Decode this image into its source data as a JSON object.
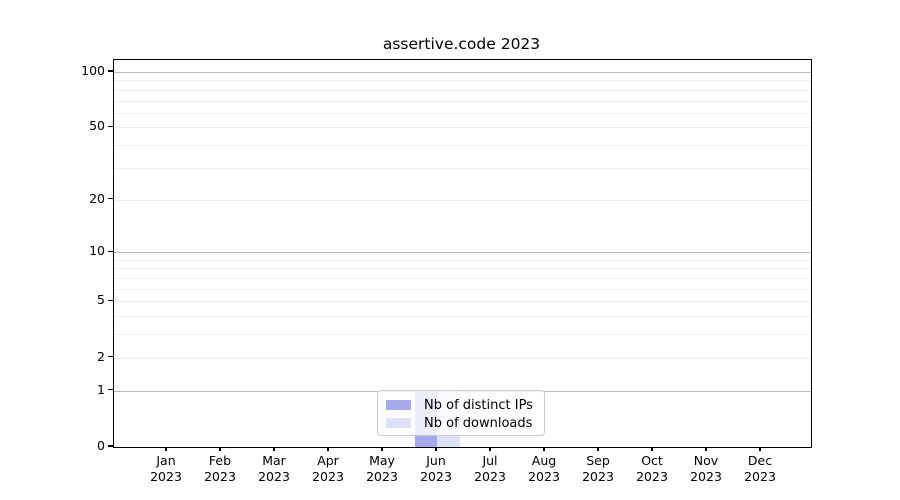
{
  "chart_data": {
    "type": "bar",
    "title": "assertive.code 2023",
    "x_months": [
      "Jan",
      "Feb",
      "Mar",
      "Apr",
      "May",
      "Jun",
      "Jul",
      "Aug",
      "Sep",
      "Oct",
      "Nov",
      "Dec"
    ],
    "x_year": "2023",
    "series": [
      {
        "name": "Nb of distinct IPs",
        "color": "#a4aaec",
        "values": [
          0,
          0,
          0,
          0,
          0,
          1,
          0,
          0,
          0,
          0,
          0,
          0
        ]
      },
      {
        "name": "Nb of downloads",
        "color": "#dde1f8",
        "values": [
          0,
          0,
          0,
          0,
          0,
          1,
          0,
          0,
          0,
          0,
          0,
          0
        ]
      }
    ],
    "yscale": "log1p",
    "ylim": [
      0,
      116
    ],
    "yticks": [
      0,
      1,
      2,
      5,
      10,
      20,
      50,
      100
    ],
    "yticks_decade": [
      1,
      10,
      100
    ],
    "yticks_minor": [
      3,
      4,
      6,
      7,
      8,
      9,
      30,
      40,
      60,
      70,
      80,
      90
    ],
    "grid": true,
    "legend_position": "lower center"
  }
}
